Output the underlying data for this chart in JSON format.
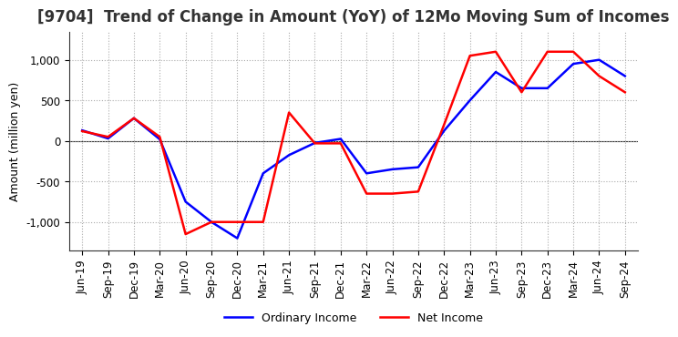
{
  "title": "[9704]  Trend of Change in Amount (YoY) of 12Mo Moving Sum of Incomes",
  "ylabel": "Amount (million yen)",
  "x_labels": [
    "Jun-19",
    "Sep-19",
    "Dec-19",
    "Mar-20",
    "Jun-20",
    "Sep-20",
    "Dec-20",
    "Mar-21",
    "Jun-21",
    "Sep-21",
    "Dec-21",
    "Mar-22",
    "Jun-22",
    "Sep-22",
    "Dec-22",
    "Mar-23",
    "Jun-23",
    "Sep-23",
    "Dec-23",
    "Mar-24",
    "Jun-24",
    "Sep-24"
  ],
  "ordinary_income": [
    130,
    30,
    280,
    20,
    -750,
    -1000,
    -1200,
    -400,
    -175,
    -25,
    25,
    -400,
    -350,
    -325,
    125,
    500,
    850,
    650,
    650,
    950,
    1000,
    800
  ],
  "net_income": [
    120,
    50,
    280,
    50,
    -1150,
    -1000,
    -1000,
    -1000,
    350,
    -30,
    -30,
    -650,
    -650,
    -625,
    200,
    1050,
    1100,
    600,
    1100,
    1100,
    800,
    600
  ],
  "ordinary_color": "#0000ff",
  "net_color": "#ff0000",
  "ylim": [
    -1350,
    1350
  ],
  "yticks": [
    -1000,
    -500,
    0,
    500,
    1000
  ],
  "background_color": "#ffffff",
  "grid_color": "#aaaaaa",
  "title_fontsize": 12,
  "label_fontsize": 9,
  "tick_fontsize": 8.5,
  "legend_fontsize": 9
}
